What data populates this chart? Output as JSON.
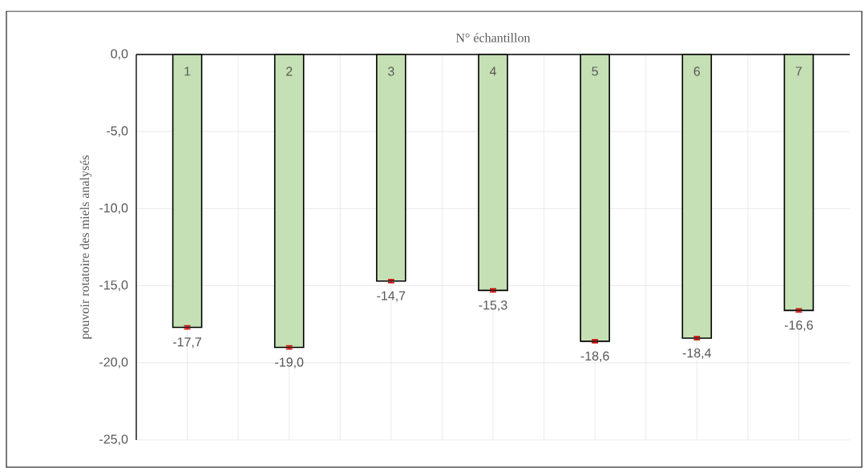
{
  "chart_data": {
    "type": "bar",
    "xlabel": "N° échantillon",
    "ylabel": "pouvoir rotatoire des miels analysés",
    "categories": [
      "1",
      "2",
      "3",
      "4",
      "5",
      "6",
      "7"
    ],
    "values": [
      -17.7,
      -19.0,
      -14.7,
      -15.3,
      -18.6,
      -18.4,
      -16.6
    ],
    "errors": [
      0.1,
      0.1,
      0.1,
      0.1,
      0.1,
      0.1,
      0.1
    ],
    "value_labels": [
      "-17,7",
      "-19,0",
      "-14,7",
      "-15,3",
      "-18,6",
      "-18,4",
      "-16,6"
    ],
    "color": "#c5e0b4",
    "ylim": [
      -25,
      0
    ],
    "yticks": [
      {
        "value": 0,
        "label": "0,0"
      },
      {
        "value": -5,
        "label": "-5,0"
      },
      {
        "value": -10,
        "label": "-10,0"
      },
      {
        "value": -15,
        "label": "-15,0"
      },
      {
        "value": -20,
        "label": "-20,0"
      },
      {
        "value": -25,
        "label": "-25,0"
      }
    ],
    "grid": true
  }
}
